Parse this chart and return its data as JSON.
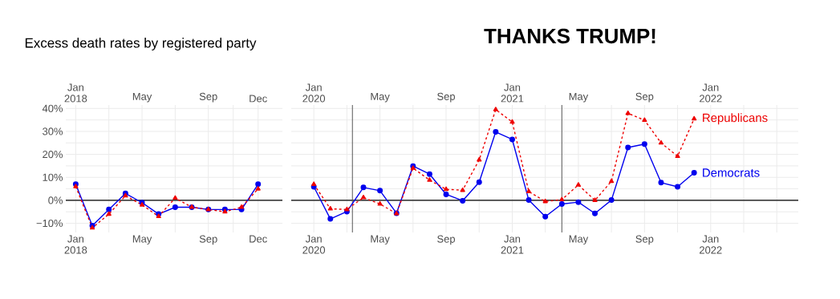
{
  "chart_data": [
    {
      "type": "line",
      "title": "Excess death rates by registered party",
      "x": [
        "2018-01",
        "2018-02",
        "2018-03",
        "2018-04",
        "2018-05",
        "2018-06",
        "2018-07",
        "2018-08",
        "2018-09",
        "2018-10",
        "2018-11",
        "2018-12"
      ],
      "series": [
        {
          "color": "#0000ee",
          "marker": "circle",
          "line_style": "solid",
          "values": [
            7,
            -11,
            -4,
            3,
            -1,
            -6,
            -3,
            -3,
            -4,
            -4,
            -4,
            7
          ]
        },
        {
          "color": "#ee0000",
          "marker": "triangle",
          "line_style": "dashed",
          "values": [
            6,
            -12,
            -6,
            2,
            -2,
            -7,
            1,
            -3,
            -4,
            -5,
            -3,
            5
          ]
        }
      ],
      "xlim": [
        "2017-12-13",
        "2019-01-15"
      ],
      "xticks": [
        {
          "value": "2018-01",
          "label": "Jan 2018"
        },
        {
          "value": "2018-03",
          "label": null
        },
        {
          "value": "2018-05",
          "label": "May"
        },
        {
          "value": "2018-07",
          "label": null
        },
        {
          "value": "2018-09",
          "label": "Sep"
        },
        {
          "value": "2018-10-16",
          "label": null
        },
        {
          "value": "2018-12",
          "label": "Dec"
        }
      ],
      "x2lim": [
        "2017-12-13",
        "2019-01-15"
      ],
      "x2ticks": [
        {
          "value": "2018-01",
          "label": "Jan 2018"
        },
        {
          "value": "2018-05",
          "label": "May"
        },
        {
          "value": "2018-09",
          "label": "Sep"
        },
        {
          "value": "2018-12",
          "label": "Dec"
        }
      ],
      "ylim": [
        -14,
        41.5
      ],
      "yticks": [
        {
          "value": -10,
          "label": "−10%"
        },
        {
          "value": -5,
          "label": null
        },
        {
          "value": 0,
          "label": "0%"
        },
        {
          "value": 5,
          "label": null
        },
        {
          "value": 10,
          "label": "10%"
        },
        {
          "value": 15,
          "label": null
        },
        {
          "value": 20,
          "label": "20%"
        },
        {
          "value": 25,
          "label": null
        },
        {
          "value": 30,
          "label": "30%"
        },
        {
          "value": 35,
          "label": null
        },
        {
          "value": 40,
          "label": "40%"
        }
      ],
      "ref_lines": [
        {
          "axis": "y",
          "value": 0,
          "color": "#000000"
        }
      ],
      "grid": true
    },
    {
      "type": "line",
      "annotations": [
        "THANKS TRUMP!"
      ],
      "x": [
        "2020-01",
        "2020-02",
        "2020-03",
        "2020-04",
        "2020-05",
        "2020-06",
        "2020-07",
        "2020-08",
        "2020-09",
        "2020-10",
        "2020-11",
        "2020-12",
        "2021-01",
        "2021-02",
        "2021-03",
        "2021-04",
        "2021-05",
        "2021-06",
        "2021-07",
        "2021-08",
        "2021-09",
        "2021-10",
        "2021-11",
        "2021-12"
      ],
      "series": [
        {
          "name": "Democrats",
          "color": "#0000ee",
          "marker": "circle",
          "line_style": "solid",
          "values": [
            5.9,
            -8.1,
            -4.9,
            5.6,
            4.2,
            -5.6,
            14.9,
            11.4,
            2.6,
            -0.2,
            7.9,
            29.8,
            26.5,
            0.1,
            -7.1,
            -1.6,
            -0.8,
            -5.7,
            0.1,
            23,
            24.5,
            7.7,
            5.9,
            12
          ]
        },
        {
          "name": "Republicans",
          "color": "#ee0000",
          "marker": "triangle",
          "line_style": "dashed",
          "values": [
            7,
            -3.7,
            -4,
            1.2,
            -1.6,
            -5.8,
            14,
            8.8,
            4.8,
            4.4,
            17.6,
            39.5,
            34.1,
            3.8,
            -0.5,
            0.3,
            6.7,
            0,
            8.3,
            37.9,
            34.9,
            25,
            19.2,
            35.5
          ]
        }
      ],
      "xlim": [
        "2019-11-20",
        "2022-06-10"
      ],
      "xticks": [
        {
          "value": "2020-01",
          "label": "Jan 2020"
        },
        {
          "value": "2020-03",
          "label": null
        },
        {
          "value": "2020-05",
          "label": "May"
        },
        {
          "value": "2020-07",
          "label": null
        },
        {
          "value": "2020-09",
          "label": "Sep"
        },
        {
          "value": "2020-11",
          "label": null
        },
        {
          "value": "2021-01",
          "label": "Jan 2021"
        },
        {
          "value": "2021-03",
          "label": null
        },
        {
          "value": "2021-05",
          "label": "May"
        },
        {
          "value": "2021-07",
          "label": null
        },
        {
          "value": "2021-09",
          "label": "Sep"
        },
        {
          "value": "2021-11",
          "label": null
        },
        {
          "value": "2022-01",
          "label": "Jan 2022"
        },
        {
          "value": "2022-03",
          "label": null
        },
        {
          "value": "2022-05",
          "label": null
        }
      ],
      "x2lim": [
        "2019-11-20",
        "2022-06-10"
      ],
      "x2ticks": [
        {
          "value": "2020-01",
          "label": "Jan 2020"
        },
        {
          "value": "2020-05",
          "label": "May"
        },
        {
          "value": "2020-09",
          "label": "Sep"
        },
        {
          "value": "2021-01",
          "label": "Jan 2021"
        },
        {
          "value": "2021-05",
          "label": "May"
        },
        {
          "value": "2021-09",
          "label": "Sep"
        },
        {
          "value": "2022-01",
          "label": "Jan 2022"
        }
      ],
      "ylim": [
        -14,
        41.5
      ],
      "yticks": [
        {
          "value": -10,
          "label": null
        },
        {
          "value": -5,
          "label": null
        },
        {
          "value": 0,
          "label": null
        },
        {
          "value": 5,
          "label": null
        },
        {
          "value": 10,
          "label": null
        },
        {
          "value": 15,
          "label": null
        },
        {
          "value": 20,
          "label": null
        },
        {
          "value": 25,
          "label": null
        },
        {
          "value": 30,
          "label": null
        },
        {
          "value": 35,
          "label": null
        },
        {
          "value": 40,
          "label": null
        }
      ],
      "tick_labels": "x",
      "ref_lines": [
        {
          "axis": "y",
          "value": 0,
          "color": "#000000"
        },
        {
          "axis": "x",
          "value": "2020-03-11",
          "color": "#555555"
        },
        {
          "axis": "x",
          "value": "2021-04-01",
          "color": "#555555"
        }
      ],
      "grid": true
    }
  ]
}
